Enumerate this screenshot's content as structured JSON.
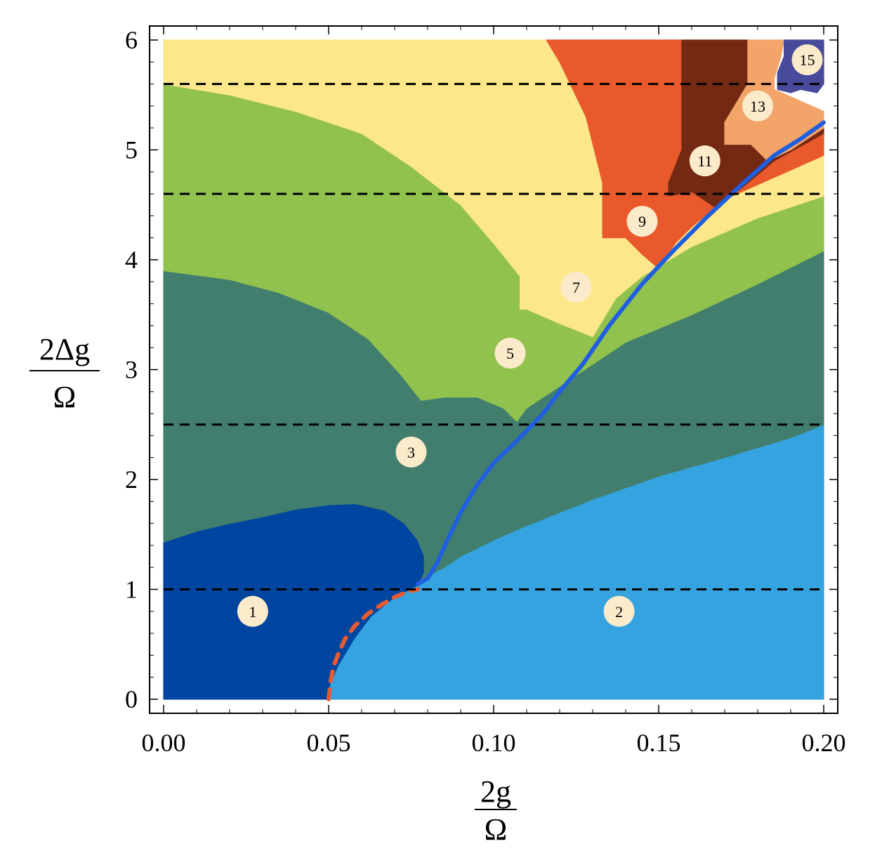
{
  "chart_data": {
    "type": "heatmap",
    "title": "",
    "xlabel": {
      "numerator": "2g",
      "denominator": "Ω"
    },
    "ylabel": {
      "numerator": "2Δg",
      "denominator": "Ω"
    },
    "xlim": [
      0.0,
      0.2
    ],
    "ylim": [
      0,
      6
    ],
    "x_ticks": [
      "0.00",
      "0.05",
      "0.10",
      "0.15",
      "0.20"
    ],
    "x_tick_values": [
      0.0,
      0.05,
      0.1,
      0.15,
      0.2
    ],
    "y_ticks": [
      "0",
      "1",
      "2",
      "3",
      "4",
      "5",
      "6"
    ],
    "y_tick_values": [
      0,
      1,
      2,
      3,
      4,
      5,
      6
    ],
    "grid": false,
    "reference_lines": [
      1.0,
      2.5,
      4.6,
      5.6
    ],
    "regions": [
      {
        "label": "1",
        "color": "#0046A0",
        "label_at": [
          0.027,
          0.8
        ],
        "boundary": [
          [
            0,
            0
          ],
          [
            0.05,
            0
          ],
          [
            0.0505,
            0.12
          ],
          [
            0.053,
            0.3
          ],
          [
            0.058,
            0.55
          ],
          [
            0.063,
            0.75
          ],
          [
            0.07,
            0.92
          ],
          [
            0.077,
            1.03
          ],
          [
            0.079,
            1.15
          ],
          [
            0.079,
            1.3
          ],
          [
            0.077,
            1.45
          ],
          [
            0.073,
            1.6
          ],
          [
            0.067,
            1.72
          ],
          [
            0.058,
            1.78
          ],
          [
            0.05,
            1.77
          ],
          [
            0.04,
            1.73
          ],
          [
            0.03,
            1.66
          ],
          [
            0.02,
            1.6
          ],
          [
            0.01,
            1.53
          ],
          [
            0.0,
            1.43
          ]
        ]
      },
      {
        "label": "2",
        "color": "#35A3E0",
        "label_at": [
          0.138,
          0.8
        ],
        "boundary": [
          [
            0.05,
            0
          ],
          [
            0.2,
            0
          ],
          [
            0.2,
            2.5
          ],
          [
            0.19,
            2.38
          ],
          [
            0.17,
            2.2
          ],
          [
            0.15,
            2.03
          ],
          [
            0.13,
            1.82
          ],
          [
            0.11,
            1.58
          ],
          [
            0.1,
            1.45
          ],
          [
            0.09,
            1.3
          ],
          [
            0.085,
            1.2
          ],
          [
            0.08,
            1.12
          ],
          [
            0.077,
            1.03
          ],
          [
            0.07,
            0.92
          ],
          [
            0.063,
            0.75
          ],
          [
            0.058,
            0.55
          ],
          [
            0.053,
            0.3
          ],
          [
            0.0505,
            0.12
          ]
        ]
      },
      {
        "label": "3",
        "color": "#427E6D",
        "label_at": [
          0.075,
          2.25
        ],
        "boundary": [
          [
            0.0,
            1.43
          ],
          [
            0.01,
            1.53
          ],
          [
            0.02,
            1.6
          ],
          [
            0.03,
            1.66
          ],
          [
            0.04,
            1.73
          ],
          [
            0.05,
            1.77
          ],
          [
            0.058,
            1.78
          ],
          [
            0.067,
            1.72
          ],
          [
            0.073,
            1.6
          ],
          [
            0.077,
            1.45
          ],
          [
            0.079,
            1.3
          ],
          [
            0.079,
            1.15
          ],
          [
            0.077,
            1.03
          ],
          [
            0.08,
            1.12
          ],
          [
            0.085,
            1.2
          ],
          [
            0.09,
            1.3
          ],
          [
            0.1,
            1.45
          ],
          [
            0.11,
            1.58
          ],
          [
            0.13,
            1.82
          ],
          [
            0.15,
            2.03
          ],
          [
            0.17,
            2.2
          ],
          [
            0.19,
            2.38
          ],
          [
            0.2,
            2.5
          ],
          [
            0.2,
            4.08
          ],
          [
            0.18,
            3.78
          ],
          [
            0.16,
            3.5
          ],
          [
            0.14,
            3.25
          ],
          [
            0.13,
            3.05
          ],
          [
            0.12,
            2.85
          ],
          [
            0.11,
            2.65
          ],
          [
            0.107,
            2.53
          ],
          [
            0.103,
            2.65
          ],
          [
            0.095,
            2.75
          ],
          [
            0.085,
            2.75
          ],
          [
            0.078,
            2.72
          ],
          [
            0.072,
            2.95
          ],
          [
            0.062,
            3.28
          ],
          [
            0.05,
            3.52
          ],
          [
            0.035,
            3.7
          ],
          [
            0.02,
            3.82
          ],
          [
            0.0,
            3.9
          ]
        ]
      },
      {
        "label": "5",
        "color": "#92C24E",
        "label_at": [
          0.105,
          3.15
        ],
        "boundary": [
          [
            0.0,
            3.9
          ],
          [
            0.02,
            3.82
          ],
          [
            0.035,
            3.7
          ],
          [
            0.05,
            3.52
          ],
          [
            0.062,
            3.28
          ],
          [
            0.072,
            2.95
          ],
          [
            0.078,
            2.72
          ],
          [
            0.085,
            2.75
          ],
          [
            0.095,
            2.75
          ],
          [
            0.103,
            2.65
          ],
          [
            0.107,
            2.53
          ],
          [
            0.11,
            2.65
          ],
          [
            0.12,
            2.85
          ],
          [
            0.13,
            3.05
          ],
          [
            0.14,
            3.25
          ],
          [
            0.16,
            3.5
          ],
          [
            0.18,
            3.78
          ],
          [
            0.2,
            4.08
          ],
          [
            0.2,
            4.58
          ],
          [
            0.18,
            4.38
          ],
          [
            0.16,
            4.12
          ],
          [
            0.145,
            3.85
          ],
          [
            0.137,
            3.65
          ],
          [
            0.13,
            3.3
          ],
          [
            0.12,
            3.42
          ],
          [
            0.11,
            3.55
          ],
          [
            0.108,
            3.55
          ],
          [
            0.108,
            3.85
          ],
          [
            0.1,
            4.15
          ],
          [
            0.09,
            4.5
          ],
          [
            0.075,
            4.85
          ],
          [
            0.06,
            5.15
          ],
          [
            0.04,
            5.35
          ],
          [
            0.02,
            5.5
          ],
          [
            0.0,
            5.6
          ]
        ]
      },
      {
        "label": "7",
        "color": "#FCE78A",
        "label_at": [
          0.125,
          3.75
        ],
        "boundary": [
          [
            0.0,
            5.6
          ],
          [
            0.02,
            5.5
          ],
          [
            0.04,
            5.35
          ],
          [
            0.06,
            5.15
          ],
          [
            0.075,
            4.85
          ],
          [
            0.09,
            4.5
          ],
          [
            0.1,
            4.15
          ],
          [
            0.108,
            3.85
          ],
          [
            0.108,
            3.55
          ],
          [
            0.11,
            3.55
          ],
          [
            0.12,
            3.42
          ],
          [
            0.13,
            3.3
          ],
          [
            0.137,
            3.65
          ],
          [
            0.145,
            3.85
          ],
          [
            0.16,
            4.12
          ],
          [
            0.18,
            4.38
          ],
          [
            0.2,
            4.58
          ],
          [
            0.2,
            4.95
          ],
          [
            0.17,
            4.55
          ],
          [
            0.16,
            4.3
          ],
          [
            0.155,
            4.15
          ],
          [
            0.15,
            3.92
          ],
          [
            0.145,
            4.05
          ],
          [
            0.14,
            4.2
          ],
          [
            0.133,
            4.2
          ],
          [
            0.133,
            4.7
          ],
          [
            0.128,
            5.3
          ],
          [
            0.12,
            5.8
          ],
          [
            0.116,
            6
          ],
          [
            0.0,
            6
          ]
        ]
      },
      {
        "label": "9",
        "color": "#E9592B",
        "label_at": [
          0.145,
          4.35
        ],
        "boundary": [
          [
            0.116,
            6
          ],
          [
            0.157,
            6
          ],
          [
            0.157,
            5.0
          ],
          [
            0.153,
            4.7
          ],
          [
            0.153,
            4.58
          ],
          [
            0.16,
            4.62
          ],
          [
            0.167,
            4.48
          ],
          [
            0.175,
            4.65
          ],
          [
            0.185,
            4.9
          ],
          [
            0.2,
            5.15
          ],
          [
            0.2,
            4.95
          ],
          [
            0.17,
            4.55
          ],
          [
            0.16,
            4.3
          ],
          [
            0.155,
            4.15
          ],
          [
            0.15,
            3.92
          ],
          [
            0.145,
            4.05
          ],
          [
            0.14,
            4.2
          ],
          [
            0.133,
            4.2
          ],
          [
            0.133,
            4.7
          ],
          [
            0.128,
            5.3
          ],
          [
            0.12,
            5.8
          ]
        ]
      },
      {
        "label": "11",
        "color": "#742912",
        "label_at": [
          0.164,
          4.9
        ],
        "boundary": [
          [
            0.157,
            6
          ],
          [
            0.177,
            6
          ],
          [
            0.177,
            5.6
          ],
          [
            0.17,
            5.25
          ],
          [
            0.17,
            5.05
          ],
          [
            0.178,
            5.05
          ],
          [
            0.183,
            4.9
          ],
          [
            0.19,
            5.0
          ],
          [
            0.2,
            5.2
          ],
          [
            0.2,
            5.15
          ],
          [
            0.185,
            4.9
          ],
          [
            0.175,
            4.65
          ],
          [
            0.167,
            4.48
          ],
          [
            0.16,
            4.62
          ],
          [
            0.153,
            4.58
          ],
          [
            0.153,
            4.7
          ],
          [
            0.157,
            5.0
          ]
        ]
      },
      {
        "label": "13",
        "color": "#F3A468",
        "label_at": [
          0.18,
          5.4
        ],
        "boundary": [
          [
            0.177,
            6
          ],
          [
            0.188,
            6
          ],
          [
            0.187,
            5.85
          ],
          [
            0.185,
            5.65
          ],
          [
            0.185,
            5.55
          ],
          [
            0.2,
            5.35
          ],
          [
            0.2,
            5.2
          ],
          [
            0.19,
            5.0
          ],
          [
            0.183,
            4.9
          ],
          [
            0.178,
            5.05
          ],
          [
            0.17,
            5.05
          ],
          [
            0.17,
            5.25
          ],
          [
            0.177,
            5.6
          ]
        ]
      },
      {
        "label": "15",
        "color": "#484A9B",
        "label_at": [
          0.195,
          5.82
        ],
        "boundary": [
          [
            0.188,
            6
          ],
          [
            0.2,
            6
          ],
          [
            0.2,
            5.6
          ],
          [
            0.198,
            5.52
          ],
          [
            0.193,
            5.55
          ],
          [
            0.19,
            5.52
          ],
          [
            0.186,
            5.55
          ],
          [
            0.186,
            5.7
          ],
          [
            0.188,
            5.85
          ]
        ]
      }
    ],
    "series": [
      {
        "style": "dashed",
        "color": "#E85A32",
        "x": [
          0.05,
          0.0505,
          0.0515,
          0.053,
          0.055,
          0.058,
          0.062,
          0.066,
          0.07,
          0.074,
          0.077
        ],
        "y": [
          0.0,
          0.15,
          0.3,
          0.42,
          0.55,
          0.67,
          0.78,
          0.86,
          0.93,
          0.98,
          1.0
        ]
      },
      {
        "style": "solid",
        "color": "#1F5FE0",
        "x": [
          0.077,
          0.08,
          0.083,
          0.086,
          0.09,
          0.095,
          0.1,
          0.107,
          0.115,
          0.12,
          0.127,
          0.135,
          0.145,
          0.155,
          0.165,
          0.175,
          0.185,
          0.193,
          0.2
        ],
        "y": [
          1.05,
          1.1,
          1.25,
          1.45,
          1.7,
          1.95,
          2.15,
          2.35,
          2.6,
          2.8,
          3.05,
          3.4,
          3.78,
          4.1,
          4.4,
          4.68,
          4.95,
          5.1,
          5.25
        ]
      }
    ]
  }
}
